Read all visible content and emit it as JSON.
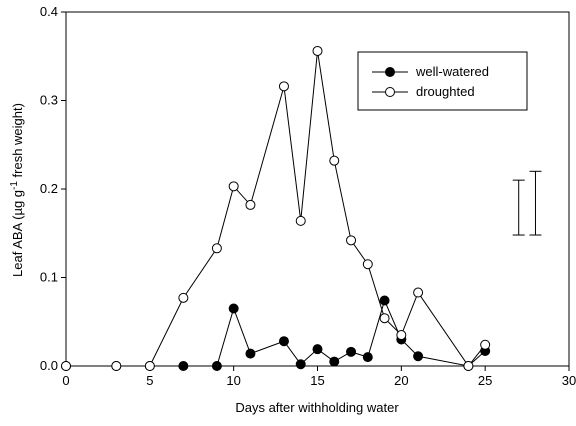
{
  "chart_data": {
    "type": "line",
    "xlabel": "Days after withholding water",
    "ylabel_parts": [
      "Leaf ABA (µg g",
      "-1",
      " fresh weight)"
    ],
    "x": [
      0,
      3,
      5,
      7,
      9,
      10,
      11,
      13,
      14,
      15,
      16,
      17,
      18,
      19,
      20,
      21,
      24,
      25
    ],
    "series": [
      {
        "name": "well-watered",
        "color": "#000000",
        "marker": "filled",
        "values": [
          0,
          0,
          0,
          0,
          0,
          0.065,
          0.014,
          0.028,
          0.002,
          0.019,
          0.005,
          0.016,
          0.01,
          0.074,
          0.03,
          0.011,
          0,
          0.017
        ]
      },
      {
        "name": "droughted",
        "color": "#000000",
        "marker": "open",
        "values": [
          0,
          0,
          0,
          0.077,
          0.133,
          0.203,
          0.182,
          0.316,
          0.164,
          0.356,
          0.232,
          0.142,
          0.115,
          0.054,
          0.035,
          0.083,
          0,
          0.024
        ]
      }
    ],
    "error_bars": [
      {
        "x": 27,
        "low": 0.148,
        "high": 0.21
      },
      {
        "x": 28,
        "low": 0.148,
        "high": 0.22
      }
    ],
    "xlim": [
      0,
      30
    ],
    "xticks": [
      0,
      5,
      10,
      15,
      20,
      25,
      30
    ],
    "ylim": [
      0,
      0.4
    ],
    "yticks": [
      {
        "value": 0,
        "label": "0.0"
      },
      0.1,
      0.2,
      0.3,
      0.4
    ],
    "grid": false,
    "legend": "upper-right"
  }
}
